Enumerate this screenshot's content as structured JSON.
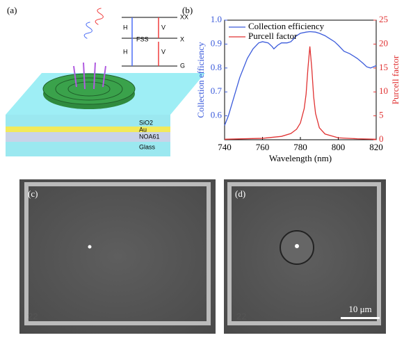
{
  "panel_a": {
    "label": "(a)",
    "levels": [
      "XX",
      "X",
      "G"
    ],
    "transitions": [
      "H",
      "V",
      "H",
      "V"
    ],
    "splitting": "FSS",
    "layers": [
      "SiO2",
      "Au",
      "NOA61",
      "Glass"
    ]
  },
  "chart_data": {
    "type": "line",
    "label": "(b)",
    "xlabel": "Wavelength (nm)",
    "ylabel": "Collection efficiency",
    "y2label": "Purcell factor",
    "xlim": [
      740,
      820
    ],
    "xticks": [
      740,
      760,
      780,
      800,
      820
    ],
    "ylim": [
      0.5,
      1.0
    ],
    "yticks": [
      0.6,
      0.7,
      0.8,
      0.9,
      {
        "value": 1.0,
        "label": "1.0"
      }
    ],
    "y2lim": [
      0,
      25
    ],
    "y2ticks": [
      0,
      5,
      10,
      15,
      20,
      25
    ],
    "legend": "upper left",
    "series": [
      {
        "name": "Collection efficiency",
        "color": "#3b5bdb",
        "x": [
          740,
          742,
          745,
          748,
          750,
          752,
          755,
          758,
          760,
          763,
          765,
          766,
          768,
          770,
          773,
          775,
          778,
          780,
          783,
          785,
          788,
          790,
          793,
          795,
          798,
          800,
          803,
          806,
          810,
          813,
          815,
          817,
          820
        ],
        "values": [
          0.56,
          0.6,
          0.68,
          0.76,
          0.8,
          0.84,
          0.88,
          0.905,
          0.91,
          0.905,
          0.89,
          0.88,
          0.895,
          0.905,
          0.905,
          0.91,
          0.935,
          0.945,
          0.95,
          0.952,
          0.95,
          0.945,
          0.935,
          0.925,
          0.91,
          0.895,
          0.87,
          0.86,
          0.84,
          0.82,
          0.805,
          0.8,
          0.81
        ]
      },
      {
        "name": "Purcell factor",
        "color": "#e03131",
        "axis": "y2",
        "x": [
          740,
          760,
          770,
          775,
          778,
          780,
          782,
          783,
          784,
          785,
          786,
          787,
          788,
          790,
          793,
          800,
          810,
          820
        ],
        "values": [
          0.1,
          0.3,
          0.7,
          1.3,
          2.2,
          3.5,
          6.5,
          9.5,
          15,
          19.5,
          15,
          9,
          5.5,
          2.5,
          1.2,
          0.4,
          0.2,
          0.1
        ]
      }
    ]
  },
  "panel_c": {
    "label": "(c)",
    "marker": "22"
  },
  "panel_d": {
    "label": "(d)",
    "marker": "22",
    "scale_bar": "10 μm"
  }
}
